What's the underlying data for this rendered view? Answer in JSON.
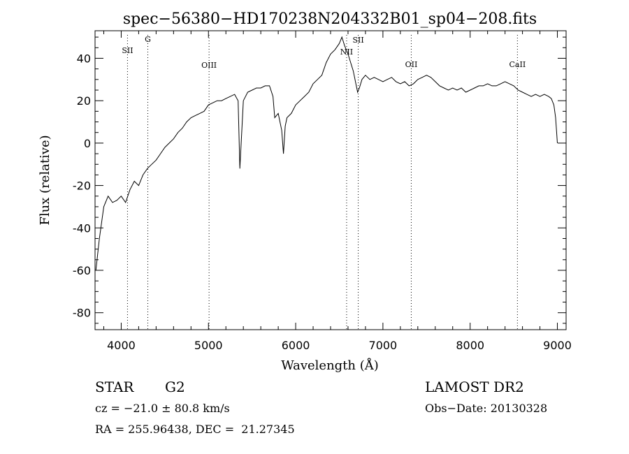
{
  "chart_data": {
    "type": "line",
    "title": "spec−56380−HD170238N204332B01_sp04−208.fits",
    "xlabel": "Wavelength (Å)",
    "ylabel": "Flux (relative)",
    "xlim": [
      3700,
      9100
    ],
    "ylim": [
      -88,
      53
    ],
    "x_ticks": [
      4000,
      5000,
      6000,
      7000,
      8000,
      9000
    ],
    "y_ticks": [
      -80,
      -60,
      -40,
      -20,
      0,
      20,
      40
    ],
    "grid": false,
    "series": [
      {
        "x": [
          3710,
          3750,
          3800,
          3850,
          3900,
          3950,
          4000,
          4050,
          4100,
          4150,
          4200,
          4250,
          4300,
          4350,
          4400,
          4450,
          4500,
          4550,
          4600,
          4650,
          4700,
          4750,
          4800,
          4850,
          4900,
          4950,
          5000,
          5050,
          5100,
          5150,
          5200,
          5250,
          5300,
          5340,
          5360,
          5400,
          5450,
          5500,
          5550,
          5600,
          5650,
          5700,
          5740,
          5760,
          5800,
          5840,
          5860,
          5880,
          5900,
          5950,
          6000,
          6050,
          6100,
          6150,
          6200,
          6250,
          6300,
          6350,
          6400,
          6450,
          6500,
          6530,
          6560,
          6580,
          6600,
          6630,
          6660,
          6690,
          6710,
          6730,
          6760,
          6800,
          6850,
          6900,
          6950,
          7000,
          7050,
          7100,
          7150,
          7200,
          7250,
          7300,
          7350,
          7400,
          7450,
          7500,
          7550,
          7600,
          7650,
          7700,
          7750,
          7800,
          7850,
          7900,
          7950,
          8000,
          8050,
          8100,
          8150,
          8200,
          8250,
          8300,
          8350,
          8400,
          8450,
          8500,
          8550,
          8600,
          8650,
          8700,
          8750,
          8800,
          8850,
          8900,
          8930,
          8960,
          8980,
          9000
        ],
        "values": [
          -60,
          -45,
          -30,
          -25,
          -28,
          -27,
          -25,
          -28,
          -22,
          -18,
          -20,
          -15,
          -12,
          -10,
          -8,
          -5,
          -2,
          0,
          2,
          5,
          7,
          10,
          12,
          13,
          14,
          15,
          18,
          19,
          20,
          20,
          21,
          22,
          23,
          20,
          -12,
          20,
          24,
          25,
          26,
          26,
          27,
          27,
          22,
          12,
          14,
          6,
          -5,
          8,
          12,
          14,
          18,
          20,
          22,
          24,
          28,
          30,
          32,
          38,
          42,
          44,
          47,
          50,
          46,
          44,
          42,
          38,
          34,
          28,
          24,
          26,
          30,
          32,
          30,
          31,
          30,
          29,
          30,
          31,
          29,
          28,
          29,
          27,
          28,
          30,
          31,
          32,
          31,
          29,
          27,
          26,
          25,
          26,
          25,
          26,
          24,
          25,
          26,
          27,
          27,
          28,
          27,
          27,
          28,
          29,
          28,
          27,
          25,
          24,
          23,
          22,
          23,
          22,
          23,
          22,
          21,
          18,
          12,
          0
        ]
      }
    ],
    "line_markers": [
      {
        "label": "SII",
        "x": 4072
      },
      {
        "label": "G",
        "x": 4305
      },
      {
        "label": "OIII",
        "x": 5007
      },
      {
        "label": "NII",
        "x": 6584
      },
      {
        "label": "SII",
        "x": 6717
      },
      {
        "label": "OII",
        "x": 7325
      },
      {
        "label": "CaII",
        "x": 8542
      }
    ]
  },
  "info": {
    "class": "STAR",
    "subclass": "G2",
    "survey": "LAMOST DR2",
    "cz": "cz = −21.0 ± 80.8 km/s",
    "obs_date": "Obs−Date: 20130328",
    "coords": "RA = 255.96438, DEC =  21.27345"
  }
}
